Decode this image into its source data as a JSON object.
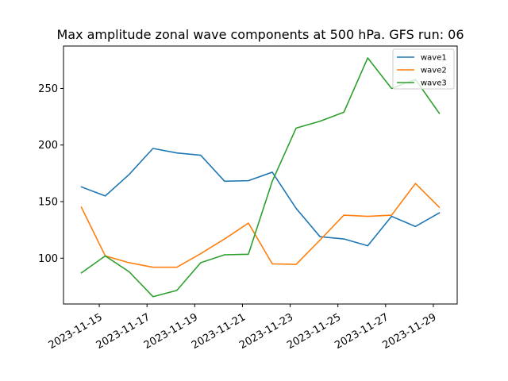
{
  "chart_data": {
    "type": "line",
    "title": "Max amplitude zonal wave components at 500 hPa. GFS run: 06",
    "xlabel": "",
    "ylabel": "",
    "x": [
      "2023-11-14 06:00",
      "2023-11-15 06:00",
      "2023-11-16 06:00",
      "2023-11-17 06:00",
      "2023-11-18 06:00",
      "2023-11-19 06:00",
      "2023-11-20 06:00",
      "2023-11-21 06:00",
      "2023-11-22 06:00",
      "2023-11-23 06:00",
      "2023-11-24 06:00",
      "2023-11-25 06:00",
      "2023-11-26 06:00",
      "2023-11-27 06:00",
      "2023-11-28 06:00",
      "2023-11-29 06:00"
    ],
    "x_ticks": [
      "2023-11-15",
      "2023-11-17",
      "2023-11-19",
      "2023-11-21",
      "2023-11-23",
      "2023-11-25",
      "2023-11-27",
      "2023-11-29"
    ],
    "y_ticks": [
      100,
      150,
      200,
      250
    ],
    "ylim": [
      59.5,
      287.5
    ],
    "legend_position": "upper right",
    "series": [
      {
        "name": "wave1",
        "color": "#1f77b4",
        "values": [
          163,
          155,
          174,
          197,
          193,
          191,
          168,
          168.5,
          176,
          144,
          119,
          117,
          111,
          137,
          128,
          140
        ]
      },
      {
        "name": "wave2",
        "color": "#ff7f0e",
        "values": [
          145,
          102,
          96,
          92,
          92,
          104,
          117,
          131,
          95,
          94.5,
          116,
          138,
          137,
          138,
          166,
          145
        ]
      },
      {
        "name": "wave3",
        "color": "#2ca02c",
        "values": [
          87,
          102,
          88,
          66,
          71.5,
          96,
          103,
          103.5,
          168,
          215,
          221,
          229,
          277,
          250,
          258,
          228
        ]
      }
    ]
  }
}
